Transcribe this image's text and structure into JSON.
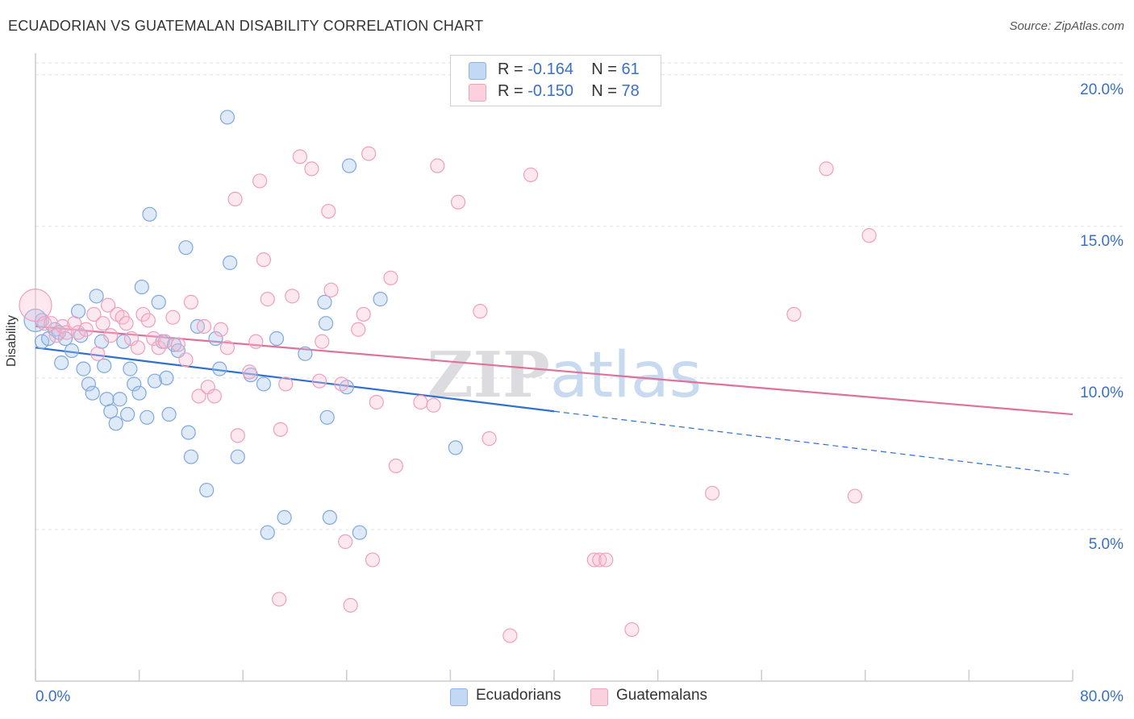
{
  "title": "ECUADORIAN VS GUATEMALAN DISABILITY CORRELATION CHART",
  "source": "Source: ZipAtlas.com",
  "legend": {
    "rows": [
      {
        "r_label": "R =",
        "r_value": "-0.164",
        "n_label": "N =",
        "n_value": "61"
      },
      {
        "r_label": "R =",
        "r_value": "-0.150",
        "n_label": "N =",
        "n_value": "78"
      }
    ]
  },
  "bottom_legend": [
    "Ecuadorians",
    "Guatemalans"
  ],
  "chart_data": {
    "type": "scatter",
    "title": "ECUADORIAN VS GUATEMALAN DISABILITY CORRELATION CHART",
    "xlabel": "",
    "ylabel": "Disability",
    "xlim": [
      0,
      80
    ],
    "ylim": [
      0,
      20.5
    ],
    "x_tick_labels": [
      "0.0%",
      "80.0%"
    ],
    "y_ticks": [
      5,
      10,
      15,
      20
    ],
    "y_tick_labels": [
      "5.0%",
      "10.0%",
      "15.0%",
      "20.0%"
    ],
    "grid": true,
    "legend_position": "top-center",
    "watermark": "ZIPatlas",
    "colors": {
      "Ecuadorians": "#9dbfea",
      "Ecuadorians_line": "#2e6fd1",
      "Guatemalans": "#f4b5c9",
      "Guatemalans_line": "#e0719a",
      "tick_text": "#3a6fc7"
    },
    "series": [
      {
        "name": "Ecuadorians",
        "points": [
          [
            0.5,
            11.9
          ],
          [
            0.5,
            11.2
          ],
          [
            1.0,
            11.3
          ],
          [
            1.5,
            11.6
          ],
          [
            1.8,
            11.5
          ],
          [
            2.0,
            10.5
          ],
          [
            2.3,
            11.3
          ],
          [
            2.8,
            10.9
          ],
          [
            3.3,
            12.2
          ],
          [
            3.5,
            11.4
          ],
          [
            3.7,
            10.3
          ],
          [
            4.1,
            9.8
          ],
          [
            4.4,
            9.5
          ],
          [
            4.7,
            12.7
          ],
          [
            5.1,
            11.2
          ],
          [
            5.3,
            10.4
          ],
          [
            5.5,
            9.3
          ],
          [
            5.8,
            8.9
          ],
          [
            6.2,
            8.5
          ],
          [
            6.5,
            9.3
          ],
          [
            6.8,
            11.2
          ],
          [
            7.1,
            8.8
          ],
          [
            7.3,
            10.3
          ],
          [
            7.6,
            9.8
          ],
          [
            8.0,
            9.5
          ],
          [
            8.2,
            13.0
          ],
          [
            8.6,
            8.7
          ],
          [
            8.8,
            15.4
          ],
          [
            9.2,
            9.9
          ],
          [
            9.5,
            12.5
          ],
          [
            9.8,
            11.2
          ],
          [
            10.1,
            10.0
          ],
          [
            10.3,
            8.8
          ],
          [
            10.7,
            11.1
          ],
          [
            11.0,
            10.9
          ],
          [
            11.6,
            14.3
          ],
          [
            11.8,
            8.2
          ],
          [
            12.0,
            7.4
          ],
          [
            12.5,
            11.7
          ],
          [
            13.2,
            6.3
          ],
          [
            13.9,
            11.3
          ],
          [
            14.2,
            10.3
          ],
          [
            14.8,
            18.6
          ],
          [
            15.0,
            13.8
          ],
          [
            15.6,
            7.4
          ],
          [
            16.6,
            10.1
          ],
          [
            17.6,
            9.8
          ],
          [
            17.9,
            4.9
          ],
          [
            18.6,
            11.3
          ],
          [
            19.2,
            5.4
          ],
          [
            20.8,
            10.8
          ],
          [
            22.3,
            12.5
          ],
          [
            22.4,
            11.8
          ],
          [
            22.5,
            8.7
          ],
          [
            22.7,
            5.4
          ],
          [
            24.0,
            9.7
          ],
          [
            24.2,
            17.0
          ],
          [
            25.0,
            4.9
          ],
          [
            26.6,
            12.6
          ],
          [
            32.4,
            7.7
          ],
          [
            0.0,
            11.9
          ]
        ],
        "trend": {
          "x0": 0,
          "y0": 11.0,
          "x1": 40,
          "y1": 8.9,
          "dash_x1": 80,
          "dash_y1": 6.8
        }
      },
      {
        "name": "Guatemalans",
        "points": [
          [
            0.0,
            12.4
          ],
          [
            0.7,
            11.8
          ],
          [
            1.2,
            11.8
          ],
          [
            1.6,
            11.4
          ],
          [
            2.1,
            11.7
          ],
          [
            2.4,
            11.5
          ],
          [
            3.0,
            11.8
          ],
          [
            3.3,
            11.5
          ],
          [
            3.9,
            11.6
          ],
          [
            4.5,
            12.1
          ],
          [
            4.8,
            10.8
          ],
          [
            5.2,
            11.8
          ],
          [
            5.6,
            12.4
          ],
          [
            5.8,
            11.4
          ],
          [
            6.3,
            12.1
          ],
          [
            6.7,
            12.0
          ],
          [
            7.0,
            11.8
          ],
          [
            7.4,
            11.3
          ],
          [
            7.9,
            11.0
          ],
          [
            8.3,
            12.1
          ],
          [
            8.7,
            11.9
          ],
          [
            9.1,
            11.3
          ],
          [
            9.5,
            11.0
          ],
          [
            10.0,
            11.2
          ],
          [
            10.6,
            12.0
          ],
          [
            11.0,
            11.1
          ],
          [
            11.6,
            10.6
          ],
          [
            12.0,
            12.5
          ],
          [
            12.6,
            9.4
          ],
          [
            13.0,
            11.7
          ],
          [
            13.3,
            9.7
          ],
          [
            13.8,
            9.4
          ],
          [
            14.3,
            11.6
          ],
          [
            14.8,
            11.0
          ],
          [
            15.4,
            15.9
          ],
          [
            15.6,
            8.1
          ],
          [
            16.5,
            10.2
          ],
          [
            17.0,
            11.2
          ],
          [
            17.3,
            16.5
          ],
          [
            17.6,
            13.9
          ],
          [
            17.9,
            12.6
          ],
          [
            18.8,
            2.7
          ],
          [
            18.9,
            8.3
          ],
          [
            19.3,
            9.8
          ],
          [
            19.8,
            12.7
          ],
          [
            20.4,
            17.3
          ],
          [
            21.3,
            16.9
          ],
          [
            21.9,
            9.9
          ],
          [
            22.1,
            11.2
          ],
          [
            22.6,
            15.5
          ],
          [
            22.8,
            12.9
          ],
          [
            23.6,
            9.8
          ],
          [
            23.9,
            4.6
          ],
          [
            24.3,
            2.5
          ],
          [
            24.9,
            11.6
          ],
          [
            25.3,
            12.1
          ],
          [
            25.7,
            17.4
          ],
          [
            26.0,
            4.0
          ],
          [
            26.3,
            9.2
          ],
          [
            27.4,
            13.3
          ],
          [
            27.8,
            7.1
          ],
          [
            29.7,
            9.2
          ],
          [
            30.7,
            9.1
          ],
          [
            31.0,
            17.0
          ],
          [
            32.6,
            15.8
          ],
          [
            34.3,
            12.2
          ],
          [
            35.0,
            8.0
          ],
          [
            36.6,
            1.5
          ],
          [
            38.2,
            16.7
          ],
          [
            43.1,
            4.0
          ],
          [
            43.5,
            4.0
          ],
          [
            46.0,
            1.7
          ],
          [
            52.2,
            6.2
          ],
          [
            58.5,
            12.1
          ],
          [
            61.0,
            16.9
          ],
          [
            63.2,
            6.1
          ],
          [
            64.3,
            14.7
          ],
          [
            44.0,
            4.0
          ]
        ],
        "trend": {
          "x0": 0,
          "y0": 11.7,
          "x1": 80,
          "y1": 8.8
        }
      }
    ]
  }
}
